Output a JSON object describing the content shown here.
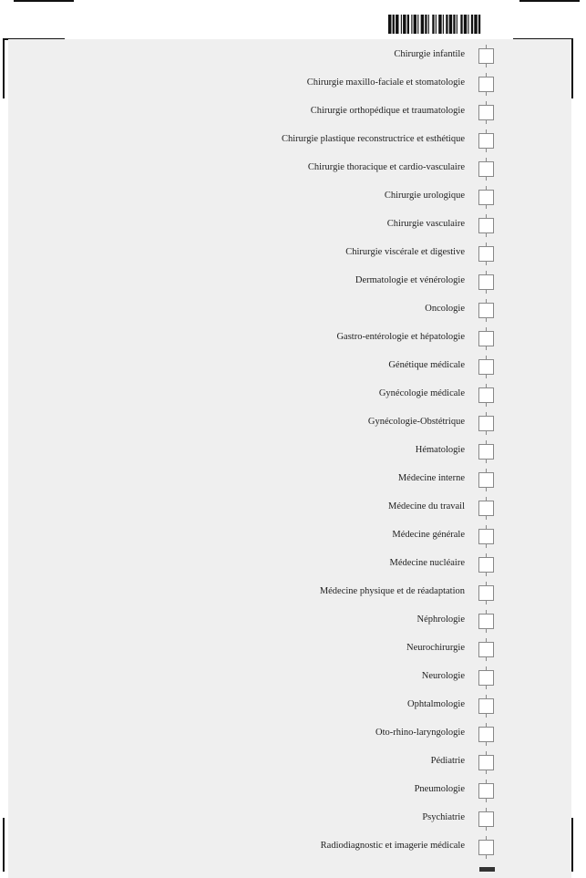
{
  "form": {
    "specialties": [
      {
        "label": "Chirurgie infantile",
        "checked": false
      },
      {
        "label": "Chirurgie maxillo-faciale et stomatologie",
        "checked": false
      },
      {
        "label": "Chirurgie orthopédique et traumatologie",
        "checked": false
      },
      {
        "label": "Chirurgie plastique reconstructrice et esthétique",
        "checked": false
      },
      {
        "label": "Chirurgie thoracique et cardio-vasculaire",
        "checked": false
      },
      {
        "label": "Chirurgie urologique",
        "checked": false
      },
      {
        "label": "Chirurgie vasculaire",
        "checked": false
      },
      {
        "label": "Chirurgie viscérale et digestive",
        "checked": false
      },
      {
        "label": "Dermatologie et vénérologie",
        "checked": false
      },
      {
        "label": "Oncologie",
        "checked": false
      },
      {
        "label": "Gastro-entérologie et hépatologie",
        "checked": false
      },
      {
        "label": "Génétique médicale",
        "checked": false
      },
      {
        "label": "Gynécologie médicale",
        "checked": false
      },
      {
        "label": "Gynécologie-Obstétrique",
        "checked": false
      },
      {
        "label": "Hématologie",
        "checked": false
      },
      {
        "label": "Médecine interne",
        "checked": false
      },
      {
        "label": "Médecine du travail",
        "checked": false
      },
      {
        "label": "Médecine générale",
        "checked": false
      },
      {
        "label": "Médecine nucléaire",
        "checked": false
      },
      {
        "label": "Médecine physique et de réadaptation",
        "checked": false
      },
      {
        "label": "Néphrologie",
        "checked": false
      },
      {
        "label": "Neurochirurgie",
        "checked": false
      },
      {
        "label": "Neurologie",
        "checked": false
      },
      {
        "label": "Ophtalmologie",
        "checked": false
      },
      {
        "label": "Oto-rhino-laryngologie",
        "checked": false
      },
      {
        "label": "Pédiatrie",
        "checked": false
      },
      {
        "label": "Pneumologie",
        "checked": false
      },
      {
        "label": "Psychiatrie",
        "checked": false
      },
      {
        "label": "Radiodiagnostic et imagerie médicale",
        "checked": false
      }
    ]
  },
  "colors": {
    "panel_background": "#efefef",
    "checkbox_border": "#888888",
    "text": "#222222"
  },
  "icons": {
    "barcode": "barcode-icon"
  }
}
